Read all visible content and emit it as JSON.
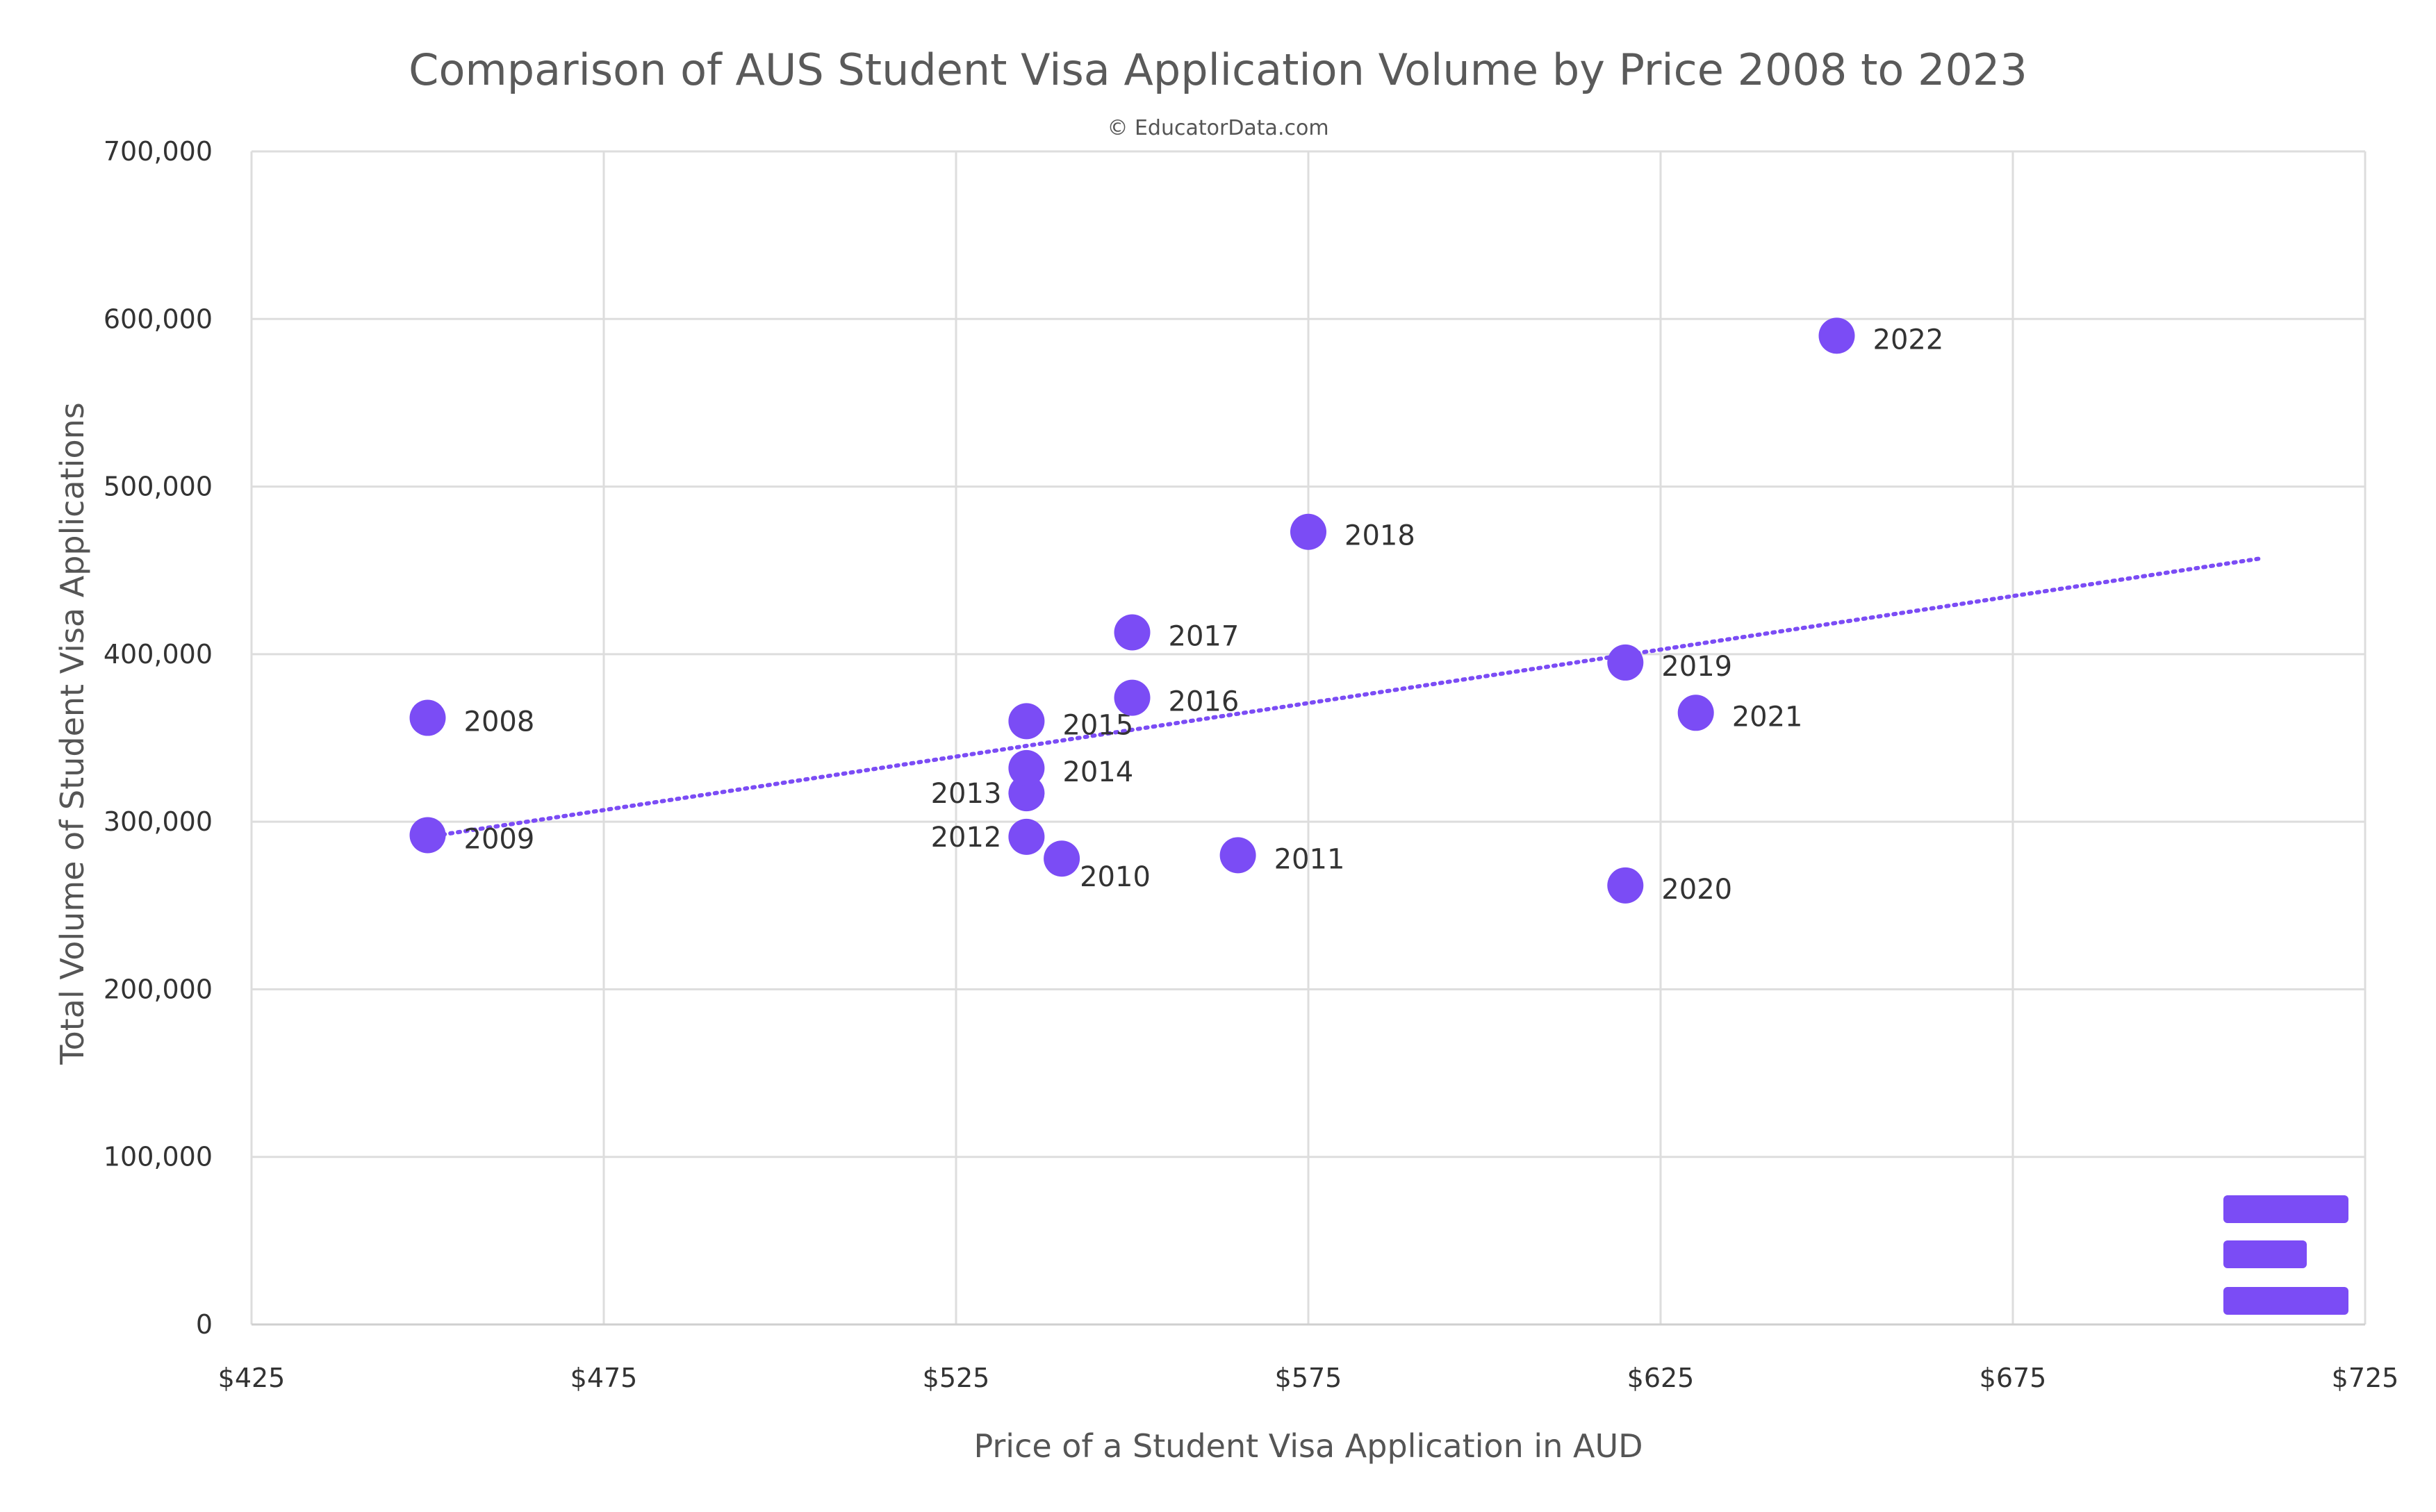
{
  "chart_data": {
    "type": "scatter",
    "title": "Comparison of AUS Student Visa Application Volume by Price 2008 to 2023",
    "subtitle": "© EducatorData.com",
    "xlabel": "Price of a Student Visa Application in AUD",
    "ylabel": "Total Volume of Student Visa Applications",
    "xlim": [
      425,
      725
    ],
    "ylim": [
      0,
      700000
    ],
    "grid": true,
    "x_ticks": [
      {
        "value": 425,
        "label": "$425"
      },
      {
        "value": 475,
        "label": "$475"
      },
      {
        "value": 525,
        "label": "$525"
      },
      {
        "value": 575,
        "label": "$575"
      },
      {
        "value": 625,
        "label": "$625"
      },
      {
        "value": 675,
        "label": "$675"
      },
      {
        "value": 725,
        "label": "$725"
      }
    ],
    "y_ticks": [
      {
        "value": 0,
        "label": "0"
      },
      {
        "value": 100000,
        "label": "100,000"
      },
      {
        "value": 200000,
        "label": "200,000"
      },
      {
        "value": 300000,
        "label": "300,000"
      },
      {
        "value": 400000,
        "label": "400,000"
      },
      {
        "value": 500000,
        "label": "500,000"
      },
      {
        "value": 600000,
        "label": "600,000"
      },
      {
        "value": 700000,
        "label": "700,000"
      }
    ],
    "series": [
      {
        "name": "Applications",
        "color": "#7b4cf5",
        "points": [
          {
            "label": "2008",
            "x": 450,
            "y": 362000,
            "label_side": "right"
          },
          {
            "label": "2009",
            "x": 450,
            "y": 292000,
            "label_side": "right"
          },
          {
            "label": "2010",
            "x": 540,
            "y": 278000,
            "label_side": "right-below"
          },
          {
            "label": "2011",
            "x": 565,
            "y": 280000,
            "label_side": "right"
          },
          {
            "label": "2012",
            "x": 535,
            "y": 291000,
            "label_side": "left"
          },
          {
            "label": "2013",
            "x": 535,
            "y": 317000,
            "label_side": "left"
          },
          {
            "label": "2014",
            "x": 535,
            "y": 332000,
            "label_side": "right"
          },
          {
            "label": "2015",
            "x": 535,
            "y": 360000,
            "label_side": "right"
          },
          {
            "label": "2016",
            "x": 550,
            "y": 374000,
            "label_side": "right"
          },
          {
            "label": "2017",
            "x": 550,
            "y": 413000,
            "label_side": "right"
          },
          {
            "label": "2018",
            "x": 575,
            "y": 473000,
            "label_side": "right"
          },
          {
            "label": "2019",
            "x": 620,
            "y": 395000,
            "label_side": "right"
          },
          {
            "label": "2020",
            "x": 620,
            "y": 262000,
            "label_side": "right"
          },
          {
            "label": "2021",
            "x": 630,
            "y": 365000,
            "label_side": "right"
          },
          {
            "label": "2022",
            "x": 650,
            "y": 590000,
            "label_side": "right"
          }
        ]
      }
    ],
    "trendline": {
      "type": "linear",
      "style": "dotted",
      "color": "#7b4cf5",
      "start": {
        "x": 450,
        "y": 291000
      },
      "end": {
        "x": 710,
        "y": 457000
      }
    }
  },
  "logo": {
    "name": "EducatorData logo",
    "color": "#7b4cf5"
  }
}
